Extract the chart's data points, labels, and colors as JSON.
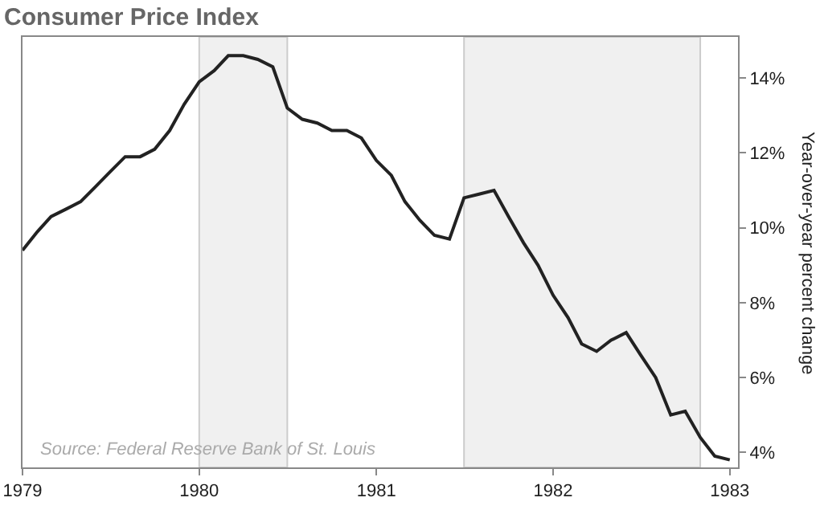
{
  "chart_data": {
    "type": "line",
    "title": "Consumer Price Index",
    "ylabel": "Year-over-year percent change",
    "annotations": [
      "Source: Federal Reserve Bank of St. Louis"
    ],
    "x": [
      "1979-01",
      "1979-02",
      "1979-03",
      "1979-04",
      "1979-05",
      "1979-06",
      "1979-07",
      "1979-08",
      "1979-09",
      "1979-10",
      "1979-11",
      "1979-12",
      "1980-01",
      "1980-02",
      "1980-03",
      "1980-04",
      "1980-05",
      "1980-06",
      "1980-07",
      "1980-08",
      "1980-09",
      "1980-10",
      "1980-11",
      "1980-12",
      "1981-01",
      "1981-02",
      "1981-03",
      "1981-04",
      "1981-05",
      "1981-06",
      "1981-07",
      "1981-08",
      "1981-09",
      "1981-10",
      "1981-11",
      "1981-12",
      "1982-01",
      "1982-02",
      "1982-03",
      "1982-04",
      "1982-05",
      "1982-06",
      "1982-07",
      "1982-08",
      "1982-09",
      "1982-10",
      "1982-11",
      "1982-12",
      "1983-01"
    ],
    "series": [
      {
        "color": "#222222",
        "values": [
          9.4,
          9.9,
          10.3,
          10.5,
          10.7,
          11.1,
          11.5,
          11.9,
          11.9,
          12.1,
          12.6,
          13.3,
          13.9,
          14.2,
          14.6,
          14.6,
          14.5,
          14.3,
          13.2,
          12.9,
          12.8,
          12.6,
          12.6,
          12.4,
          11.8,
          11.4,
          10.7,
          10.2,
          9.8,
          9.7,
          10.8,
          10.9,
          11.0,
          10.3,
          9.6,
          9.0,
          8.2,
          7.6,
          6.9,
          6.7,
          7.0,
          7.2,
          6.6,
          6.0,
          5.0,
          5.1,
          4.4,
          3.9,
          3.8
        ]
      }
    ],
    "xlim": [
      "1979-01-01",
      "1983-01-18"
    ],
    "xticks": [
      {
        "value": "1979-01-01",
        "label": "1979"
      },
      {
        "value": "1980-01-01",
        "label": "1980"
      },
      {
        "value": "1981-01-01",
        "label": "1981"
      },
      {
        "value": "1982-01-01",
        "label": "1982"
      },
      {
        "value": "1983-01-01",
        "label": "1983"
      }
    ],
    "ylim": [
      3.6,
      15.1
    ],
    "yticks": [
      {
        "value": 4,
        "label": "4%"
      },
      {
        "value": 6,
        "label": "6%"
      },
      {
        "value": 8,
        "label": "8%"
      },
      {
        "value": 10,
        "label": "10%"
      },
      {
        "value": 12,
        "label": "12%"
      },
      {
        "value": 14,
        "label": "14%"
      }
    ],
    "bands": [
      {
        "axis": "x",
        "from": "1980-01",
        "to": "1980-07",
        "color": "#f0f0f0"
      },
      {
        "axis": "x",
        "from": "1981-07",
        "to": "1982-11",
        "color": "#f0f0f0"
      }
    ],
    "grid": false,
    "marker": "none",
    "line_style": "solid"
  }
}
